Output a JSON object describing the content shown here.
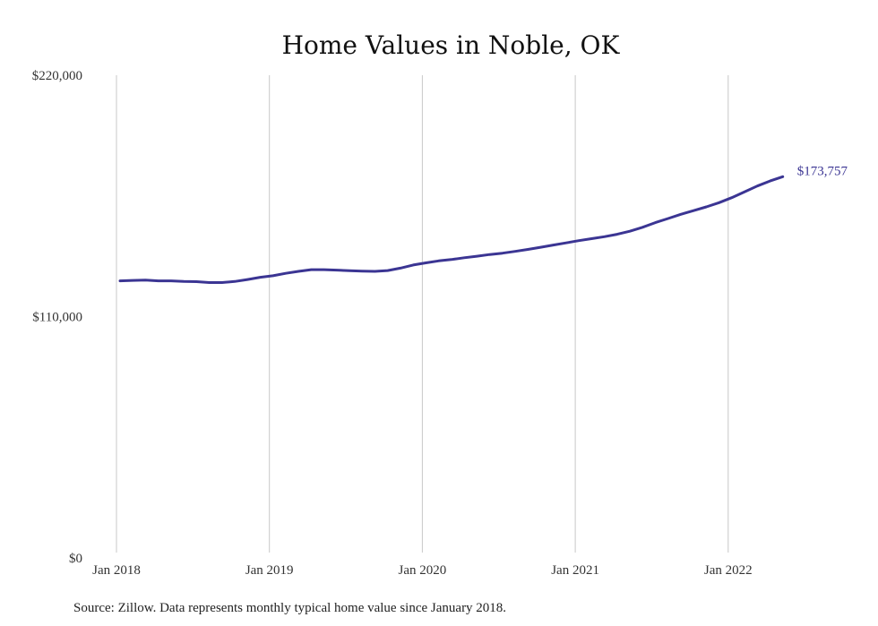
{
  "chart_data": {
    "type": "line",
    "title": "Home Values in Noble, OK",
    "source": "Source: Zillow. Data represents monthly typical home value since January 2018.",
    "ylim": [
      0,
      220000
    ],
    "y_ticks": [
      {
        "value": 0,
        "label": "$0"
      },
      {
        "value": 110000,
        "label": "$110,000"
      },
      {
        "value": 220000,
        "label": "$220,000"
      }
    ],
    "x_ticks": [
      {
        "value": "2018-01",
        "label": "Jan 2018"
      },
      {
        "value": "2019-01",
        "label": "Jan 2019"
      },
      {
        "value": "2020-01",
        "label": "Jan 2020"
      },
      {
        "value": "2021-01",
        "label": "Jan 2021"
      },
      {
        "value": "2022-01",
        "label": "Jan 2022"
      }
    ],
    "grid": "vertical",
    "line_color": "#3b3593",
    "end_label": "$173,757",
    "series": [
      {
        "x": [
          "2018-01",
          "2018-02",
          "2018-03",
          "2018-04",
          "2018-05",
          "2018-06",
          "2018-07",
          "2018-08",
          "2018-09",
          "2018-10",
          "2018-11",
          "2018-12",
          "2019-01",
          "2019-02",
          "2019-03",
          "2019-04",
          "2019-05",
          "2019-06",
          "2019-07",
          "2019-08",
          "2019-09",
          "2019-10",
          "2019-11",
          "2019-12",
          "2020-01",
          "2020-02",
          "2020-03",
          "2020-04",
          "2020-05",
          "2020-06",
          "2020-07",
          "2020-08",
          "2020-09",
          "2020-10",
          "2020-11",
          "2020-12",
          "2021-01",
          "2021-02",
          "2021-03",
          "2021-04",
          "2021-05",
          "2021-06",
          "2021-07",
          "2021-08",
          "2021-09",
          "2021-10",
          "2021-11",
          "2021-12",
          "2022-01",
          "2022-02",
          "2022-03",
          "2022-04",
          "2022-05"
        ],
        "values": [
          126300,
          126500,
          126600,
          126300,
          126300,
          126000,
          125900,
          125500,
          125500,
          126000,
          126900,
          127900,
          128600,
          129700,
          130600,
          131400,
          131400,
          131200,
          130900,
          130700,
          130600,
          131000,
          132100,
          133500,
          134500,
          135400,
          136000,
          136800,
          137500,
          138300,
          138900,
          139700,
          140600,
          141600,
          142600,
          143600,
          144600,
          145500,
          146400,
          147500,
          148900,
          150700,
          152800,
          154700,
          156600,
          158300,
          160000,
          161900,
          164200,
          166800,
          169500,
          171800,
          173757
        ]
      }
    ]
  }
}
